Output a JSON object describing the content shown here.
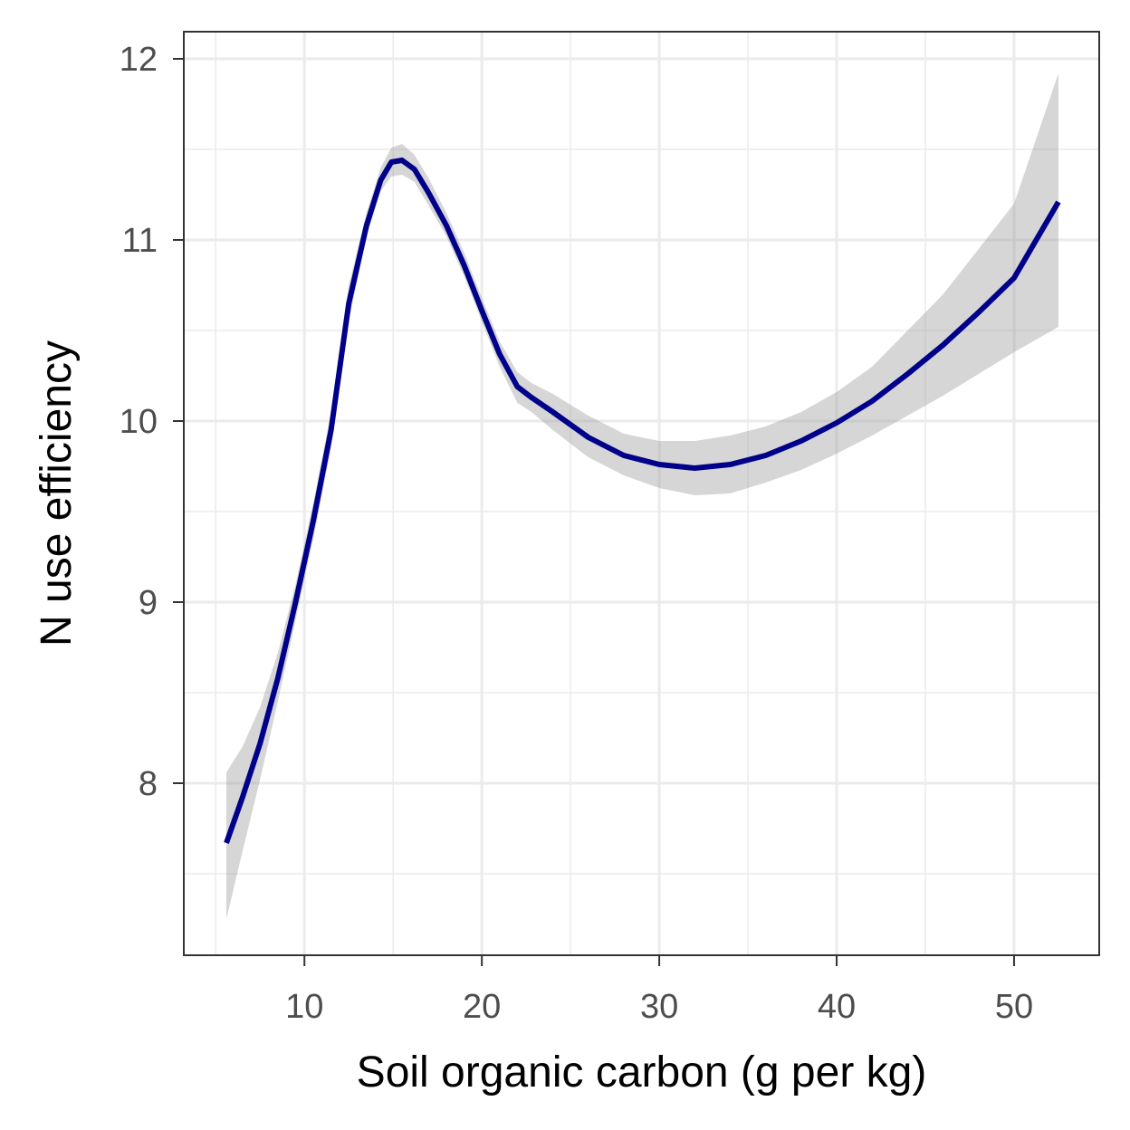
{
  "chart_data": {
    "type": "line",
    "title": "",
    "xlabel": "Soil organic carbon (g per kg)",
    "ylabel": "N use efficiency",
    "xlim": [
      3.2,
      54.8
    ],
    "ylim": [
      7.05,
      12.15
    ],
    "x_ticks": [
      10,
      20,
      30,
      40,
      50
    ],
    "x_tick_labels": [
      "10",
      "20",
      "30",
      "40",
      "50"
    ],
    "x_minor_ticks": [
      5,
      15,
      25,
      35,
      45
    ],
    "y_ticks": [
      8,
      9,
      10,
      11,
      12
    ],
    "y_tick_labels": [
      "8",
      "9",
      "10",
      "11",
      "12"
    ],
    "y_minor_ticks": [
      7.5,
      8.5,
      9.5,
      10.5,
      11.5
    ],
    "grid": true,
    "legend": "none",
    "colors": {
      "line": "#00008B",
      "ribbon": "#999999",
      "grid": "#ebebeb",
      "panel_border": "#333333",
      "tick_text": "#4d4d4d"
    },
    "series": [
      {
        "x": [
          5.6,
          6.5,
          7.5,
          8.5,
          9.5,
          10.5,
          11.5,
          12.5,
          13.5,
          14.3,
          14.9,
          15.5,
          16.2,
          17.0,
          18.0,
          19.0,
          20.0,
          21.0,
          22.0,
          22.8,
          24.0,
          26.0,
          28.0,
          30.0,
          32.0,
          34.0,
          36.0,
          38.0,
          40.0,
          42.0,
          44.0,
          46.0,
          48.0,
          50.0,
          52.5
        ],
        "y": [
          7.67,
          7.92,
          8.22,
          8.58,
          9.0,
          9.45,
          9.95,
          10.65,
          11.08,
          11.33,
          11.43,
          11.44,
          11.39,
          11.26,
          11.08,
          10.86,
          10.61,
          10.37,
          10.19,
          10.13,
          10.05,
          9.91,
          9.81,
          9.76,
          9.74,
          9.76,
          9.81,
          9.89,
          9.99,
          10.11,
          10.26,
          10.42,
          10.6,
          10.79,
          11.21
        ],
        "lower": [
          7.25,
          7.62,
          8.02,
          8.45,
          8.9,
          9.35,
          9.85,
          10.55,
          11.02,
          11.27,
          11.35,
          11.36,
          11.32,
          11.19,
          11.02,
          10.8,
          10.55,
          10.3,
          10.1,
          10.05,
          9.95,
          9.8,
          9.7,
          9.63,
          9.59,
          9.6,
          9.66,
          9.73,
          9.82,
          9.92,
          10.03,
          10.14,
          10.26,
          10.38,
          10.52
        ],
        "upper": [
          8.06,
          8.2,
          8.42,
          8.72,
          9.1,
          9.55,
          10.05,
          10.75,
          11.15,
          11.4,
          11.51,
          11.53,
          11.47,
          11.34,
          11.15,
          10.93,
          10.68,
          10.44,
          10.27,
          10.21,
          10.15,
          10.03,
          9.93,
          9.89,
          9.89,
          9.92,
          9.97,
          10.05,
          10.16,
          10.3,
          10.5,
          10.7,
          10.95,
          11.2,
          11.92
        ]
      }
    ]
  }
}
